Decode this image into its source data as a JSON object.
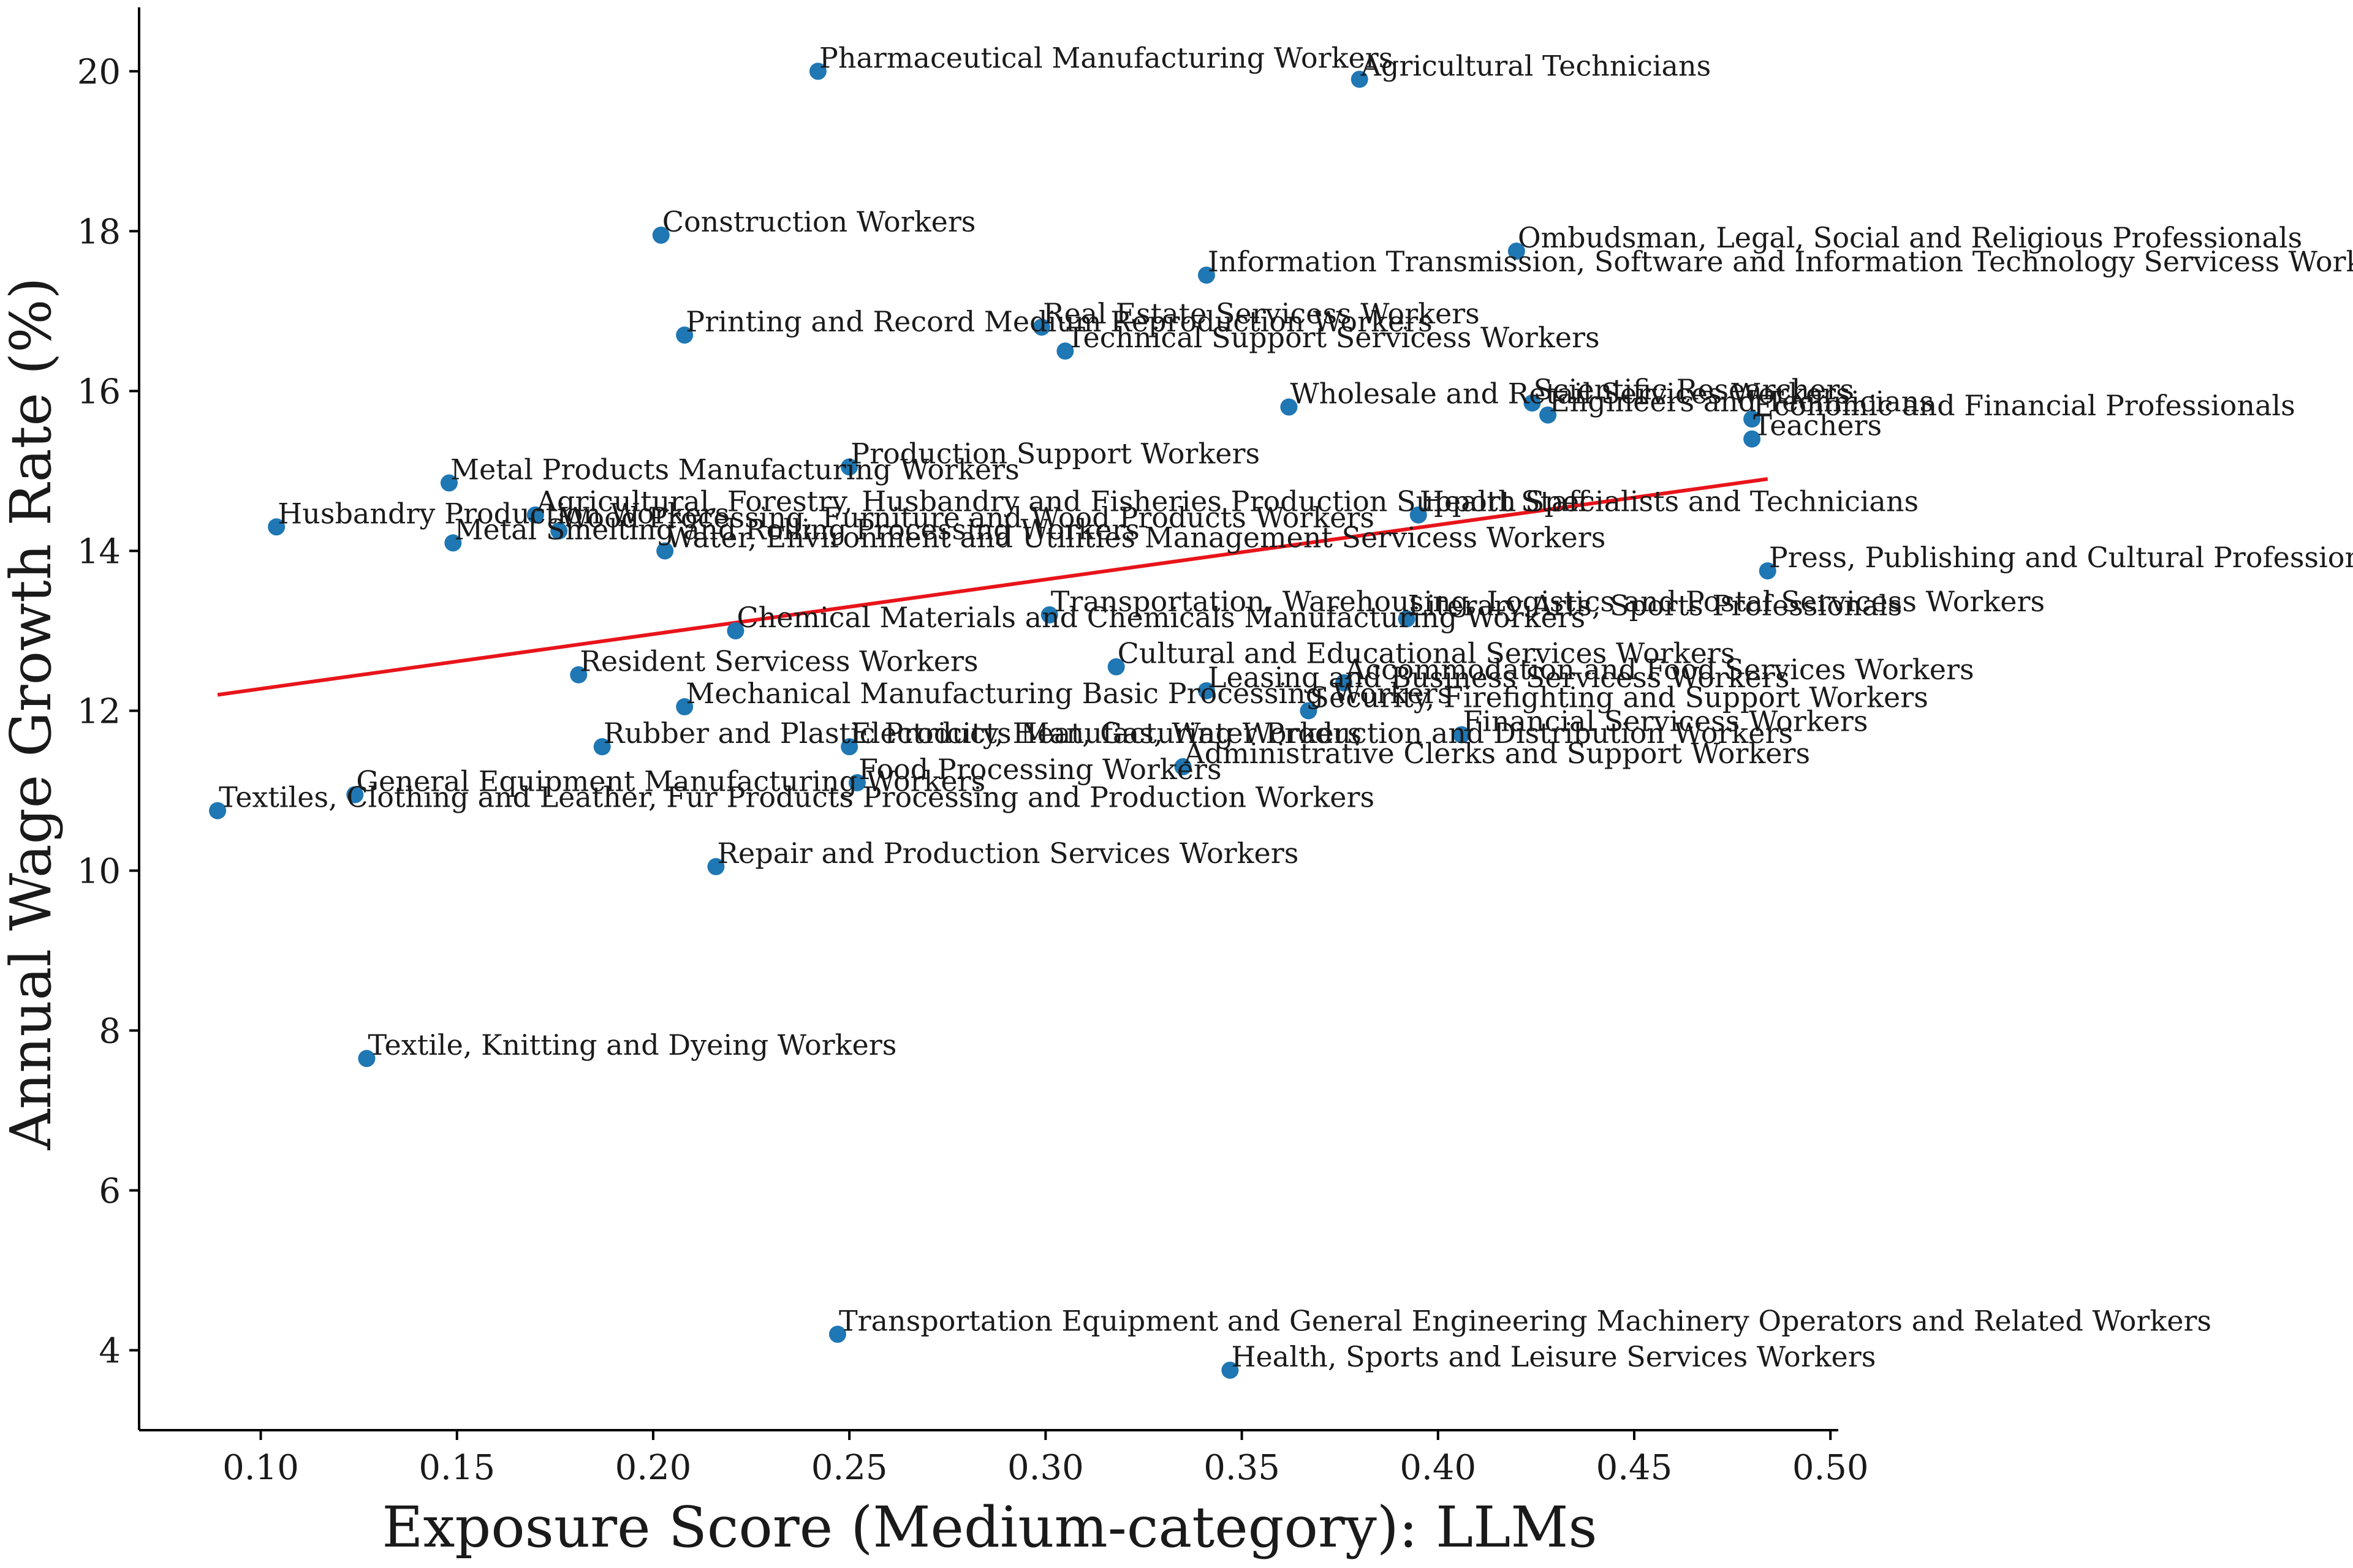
{
  "chart_data": {
    "type": "scatter",
    "title": "",
    "xlabel": "Exposure Score (Medium-category): LLMs",
    "ylabel": "Annual Wage Growth Rate (%)",
    "xlim": [
      0.069,
      0.502
    ],
    "ylim": [
      3.0,
      20.8
    ],
    "xticks": [
      0.1,
      0.15,
      0.2,
      0.25,
      0.3,
      0.35,
      0.4,
      0.45,
      0.5
    ],
    "xtick_labels": [
      "0.10",
      "0.15",
      "0.20",
      "0.25",
      "0.30",
      "0.35",
      "0.40",
      "0.45",
      "0.50"
    ],
    "yticks": [
      4,
      6,
      8,
      10,
      12,
      14,
      16,
      18,
      20
    ],
    "ytick_labels": [
      "4",
      "6",
      "8",
      "10",
      "12",
      "14",
      "16",
      "18",
      "20"
    ],
    "grid": false,
    "legend": "none",
    "point_color": "#1f77b4",
    "trend_color": "#e8141a",
    "trend_line": {
      "x": [
        0.089,
        0.484
      ],
      "y": [
        12.2,
        14.9
      ]
    },
    "points": [
      {
        "label": "Pharmaceutical Manufacturing Workers",
        "x": 0.242,
        "y": 20.0
      },
      {
        "label": "Agricultural Technicians",
        "x": 0.38,
        "y": 19.9
      },
      {
        "label": "Construction Workers",
        "x": 0.202,
        "y": 17.95
      },
      {
        "label": "Ombudsman, Legal, Social and Religious Professionals",
        "x": 0.42,
        "y": 17.75
      },
      {
        "label": "Information Transmission, Software and Information Technology Servicess Workers",
        "x": 0.341,
        "y": 17.45
      },
      {
        "label": "Printing and Record Medium Reproduction Workers",
        "x": 0.208,
        "y": 16.7
      },
      {
        "label": "Real Estate Servicess Workers",
        "x": 0.299,
        "y": 16.8
      },
      {
        "label": "Technical Support Servicess Workers",
        "x": 0.305,
        "y": 16.5
      },
      {
        "label": "Wholesale and Retail Services Workers",
        "x": 0.362,
        "y": 15.8
      },
      {
        "label": "Scientific Researchers",
        "x": 0.424,
        "y": 15.85
      },
      {
        "label": "Engineers and Technicians",
        "x": 0.428,
        "y": 15.7
      },
      {
        "label": "Economic and Financial Professionals",
        "x": 0.48,
        "y": 15.65
      },
      {
        "label": "Teachers",
        "x": 0.48,
        "y": 15.4
      },
      {
        "label": "Production Support Workers",
        "x": 0.25,
        "y": 15.05
      },
      {
        "label": "Metal Products Manufacturing Workers",
        "x": 0.148,
        "y": 14.85
      },
      {
        "label": "Agricultural, Forestry, Husbandry and Fisheries Production Support Staff",
        "x": 0.17,
        "y": 14.45
      },
      {
        "label": "Health Specialists and Technicians",
        "x": 0.395,
        "y": 14.45
      },
      {
        "label": "Husbandry Production Workers",
        "x": 0.104,
        "y": 14.3
      },
      {
        "label": "Wood Processing, Furniture and Wood Products Workers",
        "x": 0.176,
        "y": 14.25
      },
      {
        "label": "Metal Smelting and Rolling Processing Workers",
        "x": 0.149,
        "y": 14.1
      },
      {
        "label": "Water, Environment and Utilities Management Servicess Workers",
        "x": 0.203,
        "y": 14.0
      },
      {
        "label": "Press, Publishing and Cultural Professionals",
        "x": 0.484,
        "y": 13.75
      },
      {
        "label": "Transportation, Warehousing, Logistics and Postal Servicess Workers",
        "x": 0.301,
        "y": 13.2
      },
      {
        "label": "Literary Arts, Sports Professionals",
        "x": 0.392,
        "y": 13.15
      },
      {
        "label": "Chemical Materials and Chemicals Manufacturing Workers",
        "x": 0.221,
        "y": 13.0
      },
      {
        "label": "Cultural and Educational Services Workers",
        "x": 0.318,
        "y": 12.55
      },
      {
        "label": "Resident Servicess Workers",
        "x": 0.181,
        "y": 12.45
      },
      {
        "label": "Accommodation and Food Services Workers",
        "x": 0.376,
        "y": 12.35
      },
      {
        "label": "Leasing and Business Servicess Workers",
        "x": 0.341,
        "y": 12.25
      },
      {
        "label": "Mechanical Manufacturing Basic Processing Workers",
        "x": 0.208,
        "y": 12.05
      },
      {
        "label": "Security, Firefighting and Support Workers",
        "x": 0.367,
        "y": 12.0
      },
      {
        "label": "Financial Servicess Workers",
        "x": 0.406,
        "y": 11.7
      },
      {
        "label": "Rubber and Plastic Products Manufacturing Workers",
        "x": 0.187,
        "y": 11.55
      },
      {
        "label": "Electricity, Heat, Gas, Water Production and Distribution Workers",
        "x": 0.25,
        "y": 11.55
      },
      {
        "label": "Administrative Clerks and Support Workers",
        "x": 0.335,
        "y": 11.3
      },
      {
        "label": "Food Processing Workers",
        "x": 0.252,
        "y": 11.1
      },
      {
        "label": "General Equipment Manufacturing Workers",
        "x": 0.124,
        "y": 10.95
      },
      {
        "label": "Textiles, Clothing and Leather, Fur Products Processing and Production Workers",
        "x": 0.089,
        "y": 10.75
      },
      {
        "label": "Repair and Production Services Workers",
        "x": 0.216,
        "y": 10.05
      },
      {
        "label": "Textile, Knitting and Dyeing Workers",
        "x": 0.127,
        "y": 7.65
      },
      {
        "label": "Transportation Equipment and General Engineering Machinery Operators and Related Workers",
        "x": 0.247,
        "y": 4.2
      },
      {
        "label": "Health, Sports and Leisure Services Workers",
        "x": 0.347,
        "y": 3.75
      }
    ]
  }
}
